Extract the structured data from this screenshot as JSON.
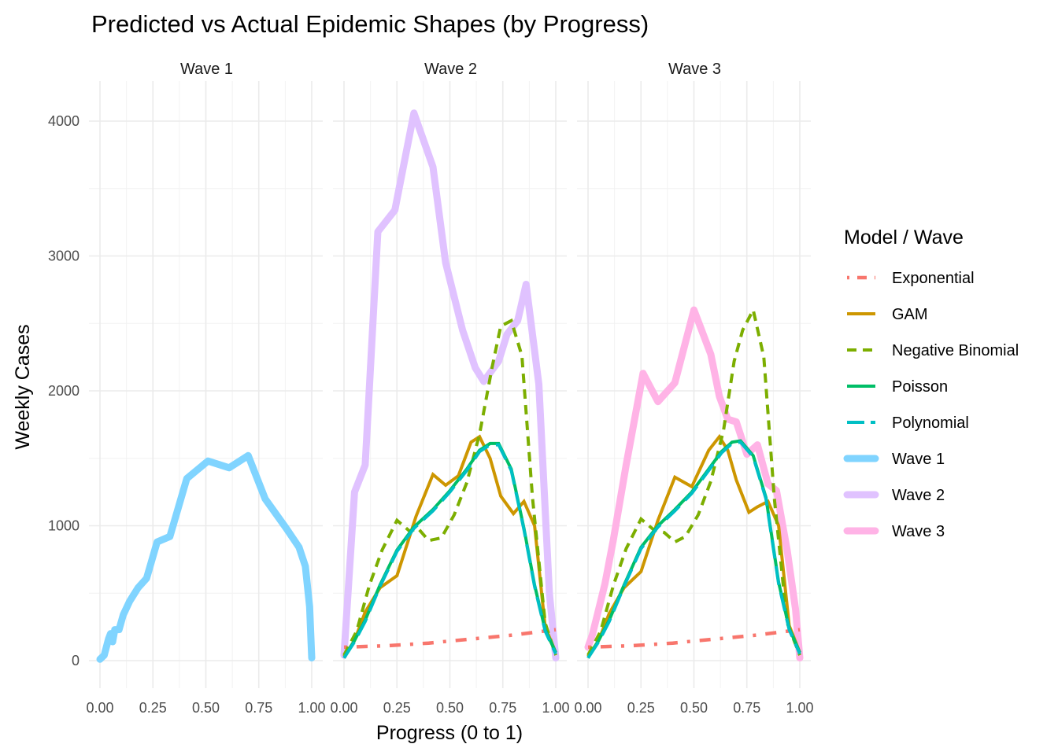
{
  "chart_data": {
    "type": "line",
    "title": "Predicted vs Actual Epidemic Shapes (by Progress)",
    "xlabel": "Progress (0 to 1)",
    "ylabel": "Weekly Cases",
    "xlim": [
      0,
      1
    ],
    "ylim": [
      -200,
      4200
    ],
    "x_ticks": [
      0,
      0.25,
      0.5,
      0.75,
      1.0
    ],
    "x_tick_labels": [
      "0.00",
      "0.25",
      "0.50",
      "0.75",
      "1.00"
    ],
    "y_ticks": [
      0,
      1000,
      2000,
      3000,
      4000
    ],
    "y_tick_labels": [
      "0",
      "1000",
      "2000",
      "3000",
      "4000"
    ],
    "grid": true,
    "facets": [
      "Wave 1",
      "Wave 2",
      "Wave 3"
    ],
    "legend": {
      "title": "Model / Wave",
      "placement": "right",
      "entries": [
        {
          "label": "Exponential",
          "color": "#F8766D",
          "style": "dotted"
        },
        {
          "label": "GAM",
          "color": "#CD9600",
          "style": "solid"
        },
        {
          "label": "Negative Binomial",
          "color": "#7CAE00",
          "style": "dashed"
        },
        {
          "label": "Poisson",
          "color": "#00BE67",
          "style": "solid"
        },
        {
          "label": "Polynomial",
          "color": "#00BFC4",
          "style": "longdash"
        },
        {
          "label": "Wave 1",
          "color": "#80D4FF",
          "style": "thick"
        },
        {
          "label": "Wave 2",
          "color": "#E0C2FF",
          "style": "thick"
        },
        {
          "label": "Wave 3",
          "color": "#FFB3E6",
          "style": "thick"
        }
      ]
    },
    "panels": [
      {
        "facet": "Wave 1",
        "series": [
          {
            "name": "Wave 1",
            "x": [
              0,
              0.02,
              0.04,
              0.05,
              0.06,
              0.07,
              0.09,
              0.11,
              0.14,
              0.18,
              0.22,
              0.27,
              0.33,
              0.41,
              0.51,
              0.61,
              0.7,
              0.78,
              0.88,
              0.94,
              0.97,
              0.99,
              1.0
            ],
            "y": [
              10,
              40,
              160,
              200,
              140,
              230,
              230,
              340,
              440,
              540,
              610,
              880,
              920,
              1350,
              1480,
              1430,
              1520,
              1200,
              980,
              840,
              700,
              400,
              20
            ]
          }
        ]
      },
      {
        "facet": "Wave 2",
        "series": [
          {
            "name": "Wave 2",
            "x": [
              0,
              0.05,
              0.1,
              0.16,
              0.24,
              0.33,
              0.42,
              0.48,
              0.56,
              0.62,
              0.66,
              0.73,
              0.77,
              0.82,
              0.86,
              0.92,
              0.97,
              1.0
            ],
            "y": [
              40,
              1250,
              1450,
              3180,
              3340,
              4060,
              3660,
              2950,
              2450,
              2170,
              2070,
              2220,
              2420,
              2520,
              2790,
              2050,
              500,
              20
            ]
          },
          {
            "name": "Exponential",
            "x": [
              0,
              0.1,
              0.2,
              0.3,
              0.4,
              0.5,
              0.6,
              0.7,
              0.8,
              0.9,
              1.0
            ],
            "y": [
              100,
              105,
              110,
              120,
              130,
              145,
              160,
              175,
              190,
              210,
              230
            ]
          },
          {
            "name": "GAM",
            "x": [
              0,
              0.05,
              0.1,
              0.17,
              0.25,
              0.34,
              0.42,
              0.48,
              0.54,
              0.6,
              0.64,
              0.69,
              0.74,
              0.8,
              0.85,
              0.9,
              0.95,
              1.0
            ],
            "y": [
              30,
              150,
              360,
              540,
              630,
              1070,
              1380,
              1300,
              1370,
              1620,
              1660,
              1500,
              1220,
              1090,
              1180,
              1000,
              250,
              60
            ]
          },
          {
            "name": "Negative Binomial",
            "x": [
              0,
              0.06,
              0.12,
              0.18,
              0.25,
              0.31,
              0.35,
              0.4,
              0.46,
              0.52,
              0.58,
              0.64,
              0.7,
              0.74,
              0.79,
              0.84,
              0.89,
              0.95,
              1.0
            ],
            "y": [
              40,
              220,
              560,
              820,
              1040,
              960,
              980,
              890,
              910,
              1080,
              1320,
              1680,
              2180,
              2480,
              2520,
              2260,
              1210,
              280,
              40
            ]
          },
          {
            "name": "Poisson",
            "x": [
              0,
              0.05,
              0.1,
              0.17,
              0.25,
              0.33,
              0.42,
              0.5,
              0.58,
              0.64,
              0.69,
              0.73,
              0.79,
              0.85,
              0.9,
              0.95,
              1.0
            ],
            "y": [
              20,
              150,
              300,
              560,
              820,
              990,
              1120,
              1260,
              1420,
              1560,
              1610,
              1610,
              1420,
              980,
              560,
              230,
              60
            ]
          },
          {
            "name": "Polynomial",
            "x": [
              0,
              0.05,
              0.1,
              0.17,
              0.25,
              0.33,
              0.42,
              0.5,
              0.58,
              0.64,
              0.69,
              0.73,
              0.79,
              0.85,
              0.9,
              0.95,
              1.0
            ],
            "y": [
              20,
              140,
              290,
              550,
              810,
              980,
              1110,
              1250,
              1410,
              1550,
              1600,
              1600,
              1410,
              970,
              550,
              220,
              50
            ]
          }
        ]
      },
      {
        "facet": "Wave 3",
        "series": [
          {
            "name": "Wave 3",
            "x": [
              0,
              0.02,
              0.05,
              0.08,
              0.12,
              0.18,
              0.26,
              0.33,
              0.41,
              0.5,
              0.58,
              0.62,
              0.66,
              0.7,
              0.75,
              0.8,
              0.85,
              0.89,
              0.94,
              0.98,
              1.0
            ],
            "y": [
              100,
              190,
              380,
              570,
              900,
              1450,
              2130,
              1920,
              2060,
              2600,
              2270,
              1960,
              1790,
              1770,
              1530,
              1600,
              1310,
              1260,
              820,
              380,
              20
            ]
          },
          {
            "name": "Exponential",
            "x": [
              0,
              0.1,
              0.2,
              0.3,
              0.4,
              0.5,
              0.6,
              0.7,
              0.8,
              0.9,
              1.0
            ],
            "y": [
              100,
              105,
              110,
              120,
              130,
              145,
              160,
              175,
              190,
              210,
              230
            ]
          },
          {
            "name": "GAM",
            "x": [
              0,
              0.05,
              0.1,
              0.17,
              0.25,
              0.33,
              0.41,
              0.49,
              0.57,
              0.62,
              0.66,
              0.7,
              0.76,
              0.8,
              0.85,
              0.9,
              0.95,
              1.0
            ],
            "y": [
              30,
              150,
              350,
              540,
              660,
              1040,
              1360,
              1290,
              1560,
              1660,
              1560,
              1340,
              1100,
              1140,
              1180,
              1000,
              260,
              60
            ]
          },
          {
            "name": "Negative Binomial",
            "x": [
              0,
              0.06,
              0.12,
              0.18,
              0.25,
              0.31,
              0.36,
              0.41,
              0.46,
              0.52,
              0.58,
              0.64,
              0.69,
              0.73,
              0.78,
              0.83,
              0.88,
              0.94,
              1.0
            ],
            "y": [
              40,
              220,
              560,
              830,
              1050,
              970,
              950,
              880,
              920,
              1080,
              1330,
              1710,
              2220,
              2450,
              2600,
              2250,
              1200,
              280,
              40
            ]
          },
          {
            "name": "Poisson",
            "x": [
              0,
              0.05,
              0.1,
              0.17,
              0.25,
              0.33,
              0.41,
              0.49,
              0.57,
              0.63,
              0.68,
              0.72,
              0.78,
              0.84,
              0.9,
              0.95,
              1.0
            ],
            "y": [
              20,
              150,
              300,
              560,
              840,
              1000,
              1120,
              1250,
              1420,
              1550,
              1620,
              1630,
              1520,
              1210,
              580,
              240,
              60
            ]
          },
          {
            "name": "Polynomial",
            "x": [
              0,
              0.05,
              0.1,
              0.17,
              0.25,
              0.33,
              0.41,
              0.49,
              0.57,
              0.63,
              0.68,
              0.72,
              0.78,
              0.84,
              0.9,
              0.95,
              1.0
            ],
            "y": [
              20,
              140,
              290,
              550,
              830,
              990,
              1110,
              1240,
              1410,
              1540,
              1610,
              1620,
              1510,
              1200,
              570,
              230,
              50
            ]
          }
        ]
      }
    ]
  }
}
